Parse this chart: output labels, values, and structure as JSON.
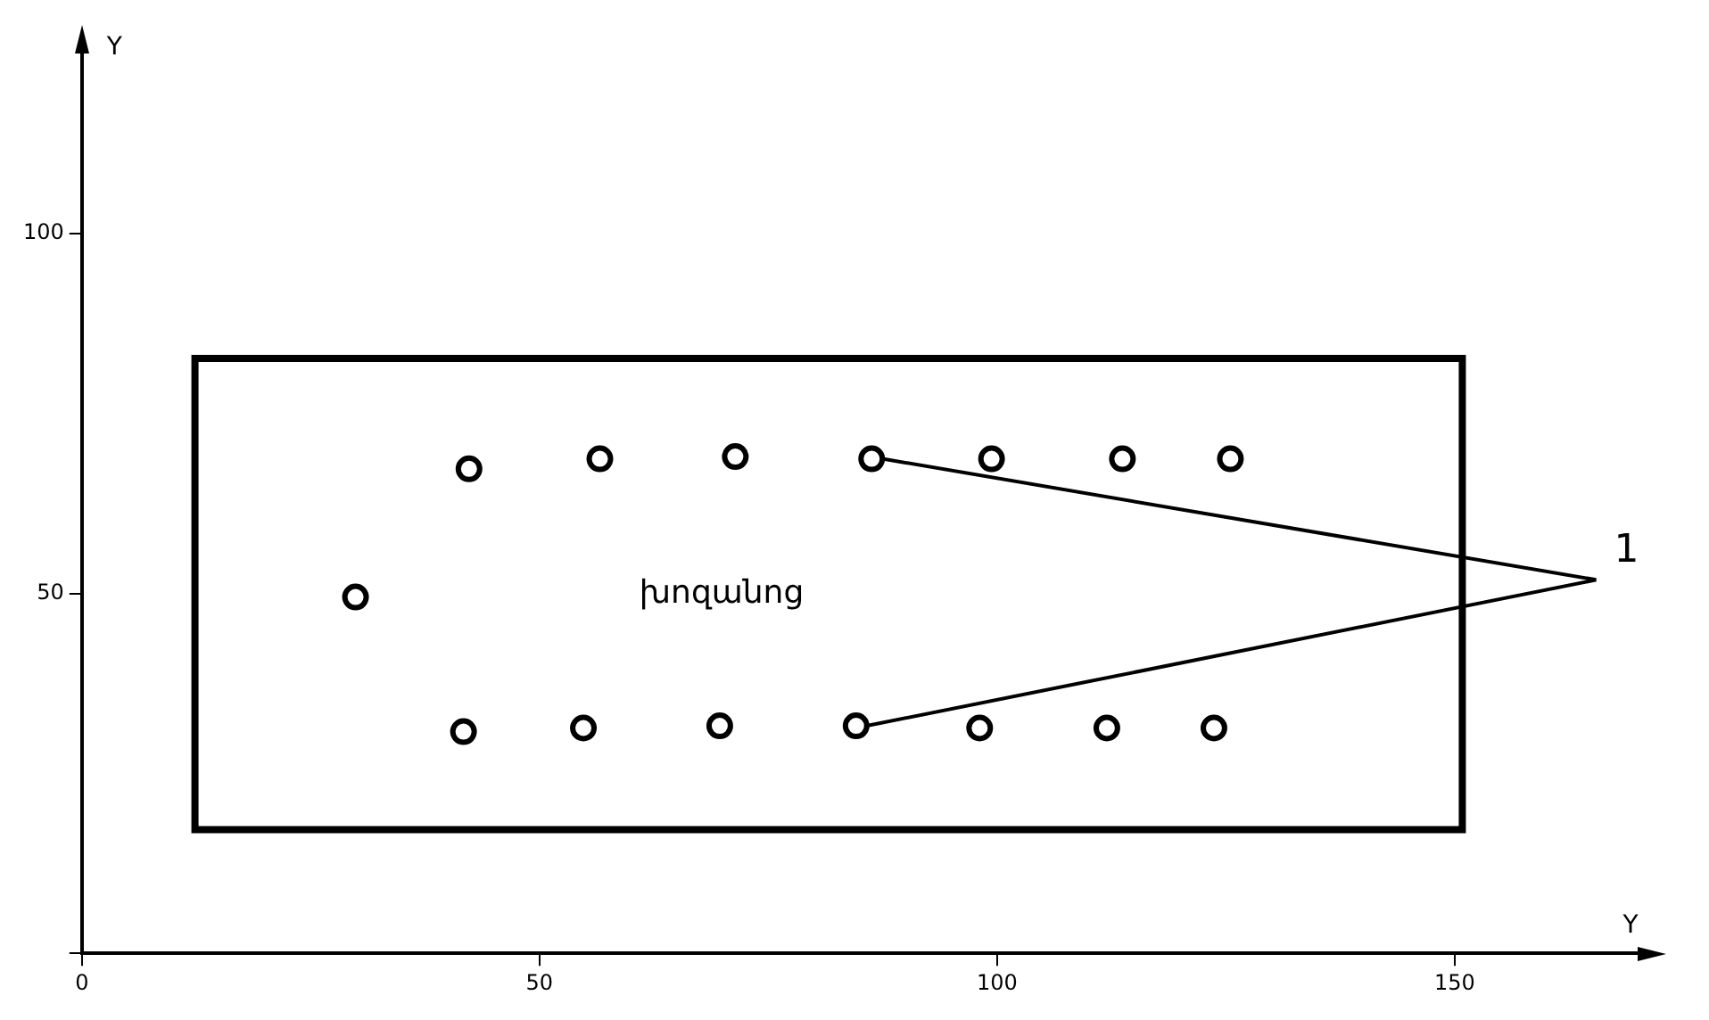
{
  "chart_data": {
    "type": "scatter",
    "xlabel": "Y",
    "ylabel": "Y",
    "xlim": [
      0,
      170
    ],
    "ylim": [
      0,
      125
    ],
    "xticks": [
      0,
      50,
      100,
      150
    ],
    "yticks": [
      {
        "value": 0,
        "label": null
      },
      50,
      100
    ],
    "grid": false,
    "legend": false,
    "marker": "circle",
    "series": [
      {
        "color": "#000000",
        "x": [
          29.9,
          42.3,
          56.6,
          71.4,
          86.3,
          99.4,
          113.7,
          125.5,
          41.7,
          54.8,
          69.7,
          84.6,
          98.1,
          112,
          123.7
        ],
        "values": [
          49.5,
          67.3,
          68.7,
          69,
          68.7,
          68.7,
          68.7,
          68.7,
          30.8,
          31.3,
          31.6,
          31.6,
          31.3,
          31.3,
          31.3
        ]
      }
    ],
    "annotations": [
      "խոզանոց",
      "1"
    ]
  }
}
